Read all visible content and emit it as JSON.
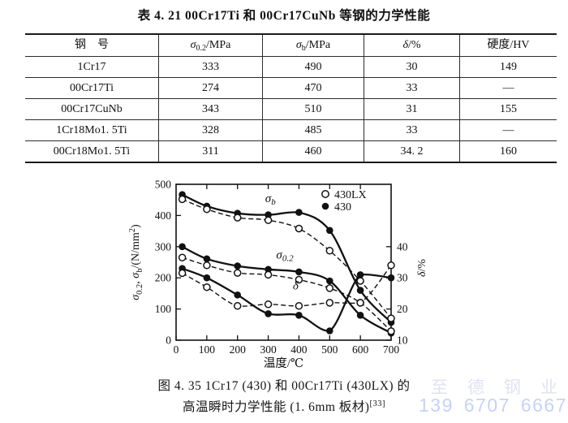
{
  "table": {
    "title": "表 4. 21  00Cr17Ti 和 00Cr17CuNb 等钢的力学性能",
    "header_parts": [
      [
        {
          "t": "钢　号"
        }
      ],
      [
        {
          "t": "σ",
          "i": 1
        },
        {
          "t": "0.2",
          "sub": 1
        },
        {
          "t": "/MPa"
        }
      ],
      [
        {
          "t": "σ",
          "i": 1
        },
        {
          "t": "b",
          "sub": 1
        },
        {
          "t": "/MPa"
        }
      ],
      [
        {
          "t": "δ",
          "i": 1
        },
        {
          "t": "/%"
        }
      ],
      [
        {
          "t": "硬度/HV"
        }
      ]
    ],
    "rows": [
      {
        "cells": [
          "1Cr17",
          "333",
          "490",
          "30",
          "149"
        ]
      },
      {
        "cells": [
          "00Cr17Ti",
          "274",
          "470",
          "33",
          "—"
        ]
      },
      {
        "cells": [
          "00Cr17CuNb",
          "343",
          "510",
          "31",
          "155"
        ]
      },
      {
        "cells": [
          "1Cr18Mo1. 5Ti",
          "328",
          "485",
          "33",
          "—"
        ]
      },
      {
        "cells": [
          "00Cr18Mo1. 5Ti",
          "311",
          "460",
          "34. 2",
          "160"
        ]
      }
    ]
  },
  "chart_data": {
    "type": "line",
    "x": [
      20,
      100,
      200,
      300,
      400,
      500,
      600,
      700
    ],
    "xlabel": "温度/℃",
    "ylabel_left": "σ0.2, σb/(N/mm²)",
    "ylabel_right": "δ/%",
    "xlim": [
      0,
      700
    ],
    "ylim_left": [
      0,
      500
    ],
    "right_axis_note": "right axis δ/%: value 10 aligns with left 0, value 40 aligns with left 300 (δ = left/10 + 10)",
    "xticks": [
      0,
      100,
      200,
      300,
      400,
      500,
      600,
      700
    ],
    "yticks_left": [
      0,
      100,
      200,
      300,
      400,
      500
    ],
    "yticks_right": [
      10,
      20,
      30,
      40
    ],
    "grid": false,
    "legend_position": "upper-right-inside",
    "legend": [
      {
        "marker": "open",
        "label": "430LX"
      },
      {
        "marker": "filled",
        "label": "430"
      }
    ],
    "series": [
      {
        "key": "sigma-b-430",
        "name": "σb 430",
        "axis": "left",
        "line": "solid",
        "marker": "filled",
        "values": [
          467,
          430,
          407,
          402,
          410,
          352,
          160,
          57
        ]
      },
      {
        "key": "sigma-b-430lx",
        "name": "σb 430LX",
        "axis": "left",
        "line": "dashed",
        "marker": "open",
        "values": [
          452,
          420,
          393,
          385,
          358,
          287,
          190,
          70
        ]
      },
      {
        "key": "sigma-02-430",
        "name": "σ0.2 430",
        "axis": "left",
        "line": "solid",
        "marker": "filled",
        "values": [
          300,
          261,
          238,
          227,
          219,
          190,
          80,
          23
        ]
      },
      {
        "key": "sigma-02-430lx",
        "name": "σ0.2 430LX",
        "axis": "left",
        "line": "dashed",
        "marker": "open",
        "values": [
          265,
          240,
          216,
          210,
          194,
          167,
          120,
          29
        ]
      },
      {
        "key": "delta-430",
        "name": "δ 430",
        "axis": "right",
        "line": "solid",
        "marker": "filled",
        "values": [
          33,
          30,
          24.5,
          18.5,
          18,
          13,
          31,
          30
        ]
      },
      {
        "key": "delta-430lx",
        "name": "δ 430LX",
        "axis": "right",
        "line": "dashed",
        "marker": "open",
        "values": [
          31.5,
          27,
          21,
          21.5,
          21,
          22,
          22,
          34
        ]
      }
    ],
    "ylabel_left_parts": [
      {
        "t": "σ",
        "i": 1
      },
      {
        "t": "0.2",
        "sub": 1
      },
      {
        "t": ", "
      },
      {
        "t": "σ",
        "i": 1
      },
      {
        "t": "b",
        "sub": 1
      },
      {
        "t": "/(N/mm"
      },
      {
        "t": "2",
        "sup": 1
      },
      {
        "t": ")"
      }
    ],
    "ylabel_right_parts": [
      {
        "t": "δ",
        "i": 1
      },
      {
        "t": "/%"
      }
    ],
    "curve_labels": [
      {
        "main": "σ",
        "sub": "b",
        "x": 290,
        "y_left": 443
      },
      {
        "main": "σ",
        "sub": "0.2",
        "x": 326,
        "y_left": 262
      },
      {
        "main": "δ",
        "sub": "",
        "x": 380,
        "y_left": 163
      }
    ]
  },
  "caption": {
    "line1": "图 4. 35  1Cr17 (430) 和 00Cr17Ti (430LX) 的",
    "line2": "高温瞬时力学性能 (1. 6mm 板材)",
    "line2_sup": "[33]"
  },
  "watermark": {
    "company": "至德钢业",
    "phone": "139 6707 6667",
    "company_color": "#e0e3f1",
    "phone_color": "#c5d3f3"
  }
}
